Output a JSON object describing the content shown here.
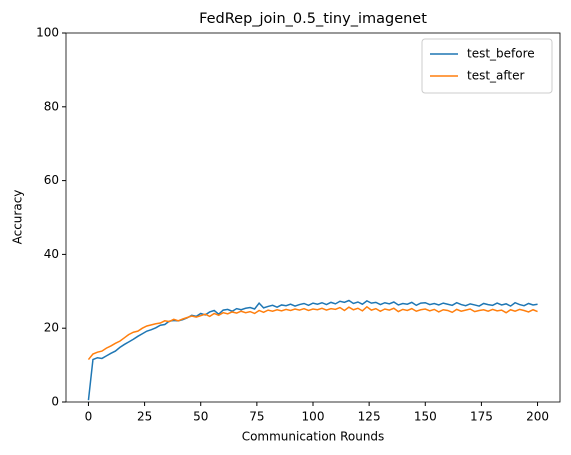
{
  "chart_data": {
    "type": "line",
    "title": "FedRep_join_0.5_tiny_imagenet",
    "xlabel": "Communication Rounds",
    "ylabel": "Accuracy",
    "x": [
      0,
      2,
      4,
      6,
      8,
      10,
      12,
      14,
      16,
      18,
      20,
      22,
      24,
      26,
      28,
      30,
      32,
      34,
      36,
      38,
      40,
      42,
      44,
      46,
      48,
      50,
      52,
      54,
      56,
      58,
      60,
      62,
      64,
      66,
      68,
      70,
      72,
      74,
      76,
      78,
      80,
      82,
      84,
      86,
      88,
      90,
      92,
      94,
      96,
      98,
      100,
      102,
      104,
      106,
      108,
      110,
      112,
      114,
      116,
      118,
      120,
      122,
      124,
      126,
      128,
      130,
      132,
      134,
      136,
      138,
      140,
      142,
      144,
      146,
      148,
      150,
      152,
      154,
      156,
      158,
      160,
      162,
      164,
      166,
      168,
      170,
      172,
      174,
      176,
      178,
      180,
      182,
      184,
      186,
      188,
      190,
      192,
      194,
      196,
      198,
      200
    ],
    "series": [
      {
        "name": "test_before",
        "color": "#1f77b4",
        "values": [
          0.5,
          11.5,
          12.0,
          11.8,
          12.5,
          13.2,
          13.8,
          14.8,
          15.6,
          16.3,
          17.0,
          17.8,
          18.5,
          19.2,
          19.6,
          20.1,
          20.8,
          21.0,
          21.9,
          22.1,
          22.0,
          22.3,
          22.8,
          23.5,
          23.2,
          24.0,
          23.6,
          24.4,
          24.8,
          23.8,
          24.9,
          25.1,
          24.6,
          25.3,
          25.0,
          25.4,
          25.6,
          25.2,
          26.8,
          25.5,
          25.9,
          26.2,
          25.7,
          26.3,
          26.1,
          26.5,
          26.0,
          26.4,
          26.7,
          26.2,
          26.8,
          26.5,
          26.9,
          26.4,
          27.0,
          26.6,
          27.3,
          27.0,
          27.5,
          26.7,
          27.1,
          26.5,
          27.4,
          26.8,
          27.0,
          26.4,
          26.9,
          26.6,
          27.1,
          26.3,
          26.7,
          26.5,
          27.0,
          26.2,
          26.8,
          26.9,
          26.4,
          26.7,
          26.3,
          26.8,
          26.5,
          26.2,
          26.9,
          26.4,
          26.1,
          26.6,
          26.3,
          26.0,
          26.7,
          26.4,
          26.2,
          26.8,
          26.3,
          26.6,
          26.0,
          26.9,
          26.4,
          26.1,
          26.7,
          26.3,
          26.5
        ]
      },
      {
        "name": "test_after",
        "color": "#ff7f0e",
        "values": [
          11.5,
          13.0,
          13.5,
          13.8,
          14.6,
          15.2,
          15.9,
          16.5,
          17.4,
          18.3,
          18.9,
          19.2,
          20.0,
          20.6,
          20.9,
          21.2,
          21.4,
          22.0,
          21.8,
          22.4,
          22.0,
          22.5,
          22.9,
          23.3,
          23.0,
          23.4,
          23.8,
          23.2,
          24.0,
          23.5,
          24.2,
          23.9,
          24.4,
          24.1,
          24.6,
          24.2,
          24.5,
          24.0,
          24.8,
          24.3,
          24.9,
          24.6,
          25.0,
          24.7,
          25.1,
          24.8,
          25.2,
          24.9,
          25.3,
          24.8,
          25.2,
          25.0,
          25.4,
          24.9,
          25.3,
          25.1,
          25.6,
          24.8,
          25.7,
          25.0,
          25.4,
          24.7,
          25.8,
          24.9,
          25.3,
          24.6,
          25.2,
          24.9,
          25.4,
          24.5,
          25.1,
          24.8,
          25.3,
          24.6,
          25.0,
          25.2,
          24.7,
          25.1,
          24.4,
          25.0,
          24.8,
          24.3,
          25.1,
          24.6,
          24.9,
          25.2,
          24.5,
          24.8,
          25.0,
          24.6,
          25.1,
          24.7,
          24.9,
          24.2,
          25.0,
          24.6,
          25.1,
          24.8,
          24.4,
          25.0,
          24.5
        ]
      }
    ],
    "xlim": [
      -10,
      210
    ],
    "ylim": [
      0,
      100
    ],
    "xticks": [
      0,
      25,
      50,
      75,
      100,
      125,
      150,
      175,
      200
    ],
    "yticks": [
      0,
      20,
      40,
      60,
      80,
      100
    ],
    "grid": false,
    "legend": "upper right"
  }
}
